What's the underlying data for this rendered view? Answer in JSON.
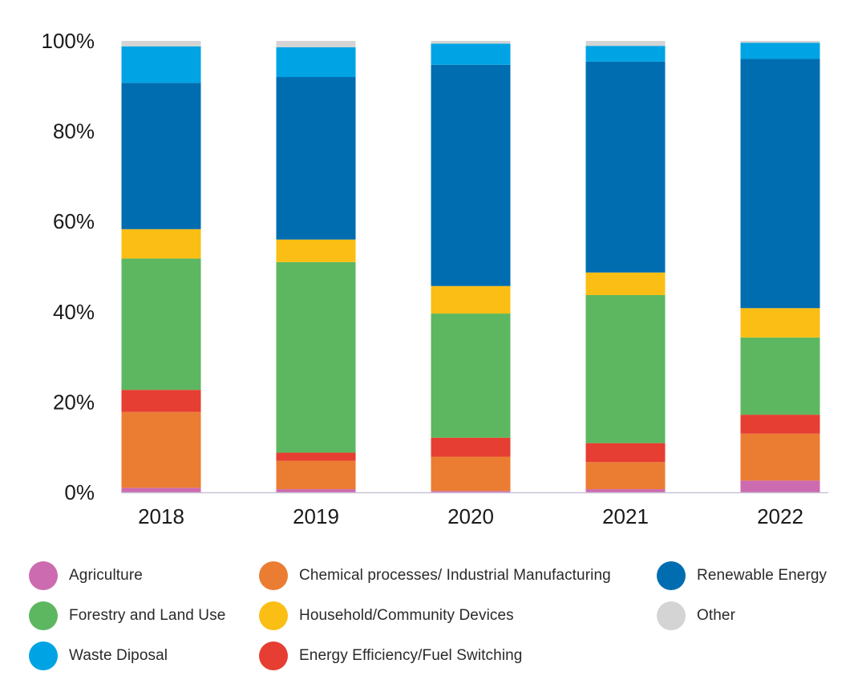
{
  "chart_data": {
    "type": "bar",
    "stacked": true,
    "categories": [
      "2018",
      "2019",
      "2020",
      "2021",
      "2022"
    ],
    "ylim": [
      0,
      100
    ],
    "yticks": [
      0,
      20,
      40,
      60,
      80,
      100
    ],
    "ytick_labels": [
      "0%",
      "20%",
      "40%",
      "60%",
      "80%",
      "100%"
    ],
    "title": "",
    "xlabel": "",
    "ylabel": "",
    "grid": false,
    "legend_position": "bottom",
    "series": [
      {
        "key": "agriculture",
        "name": "Agriculture",
        "color": "#CC6BB0",
        "values": [
          1.0,
          0.7,
          0.3,
          0.7,
          2.6
        ]
      },
      {
        "key": "chemical",
        "name": "Chemical processes/ Industrial Manufacturing",
        "color": "#EB7D33",
        "values": [
          16.8,
          6.3,
          7.6,
          6.0,
          10.4
        ]
      },
      {
        "key": "energy_efficiency",
        "name": "Energy Efficiency/Fuel Switching",
        "color": "#E63E32",
        "values": [
          4.9,
          1.8,
          4.2,
          4.2,
          4.2
        ]
      },
      {
        "key": "forestry",
        "name": "Forestry and Land Use",
        "color": "#5DB760",
        "values": [
          29.1,
          42.2,
          27.5,
          32.8,
          17.1
        ]
      },
      {
        "key": "household",
        "name": "Household/Community Devices",
        "color": "#FBBE14",
        "values": [
          6.5,
          5.0,
          6.1,
          5.0,
          6.5
        ]
      },
      {
        "key": "renewable",
        "name": "Renewable Energy",
        "color": "#006DB0",
        "values": [
          32.4,
          36.0,
          49.0,
          46.7,
          55.2
        ]
      },
      {
        "key": "waste",
        "name": "Waste Diposal",
        "color": "#00A3E3",
        "values": [
          8.1,
          6.6,
          4.7,
          3.5,
          3.6
        ]
      },
      {
        "key": "other",
        "name": "Other",
        "color": "#D4D4D4",
        "values": [
          1.2,
          1.4,
          0.6,
          1.1,
          0.4
        ]
      }
    ]
  },
  "legend": {
    "items": [
      {
        "label": "Agriculture",
        "color": "#CC6BB0"
      },
      {
        "label": "Chemical processes/ Industrial Manufacturing",
        "color": "#EB7D33"
      },
      {
        "label": "Renewable Energy",
        "color": "#006DB0"
      },
      {
        "label": "Forestry and Land Use",
        "color": "#5DB760"
      },
      {
        "label": "Household/Community Devices",
        "color": "#FBBE14"
      },
      {
        "label": "Other",
        "color": "#D4D4D4"
      },
      {
        "label": "Waste Diposal",
        "color": "#00A3E3"
      },
      {
        "label": "Energy Efficiency/Fuel Switching",
        "color": "#E63E32"
      }
    ]
  },
  "colors": {
    "axis": "#C9C2D6"
  }
}
